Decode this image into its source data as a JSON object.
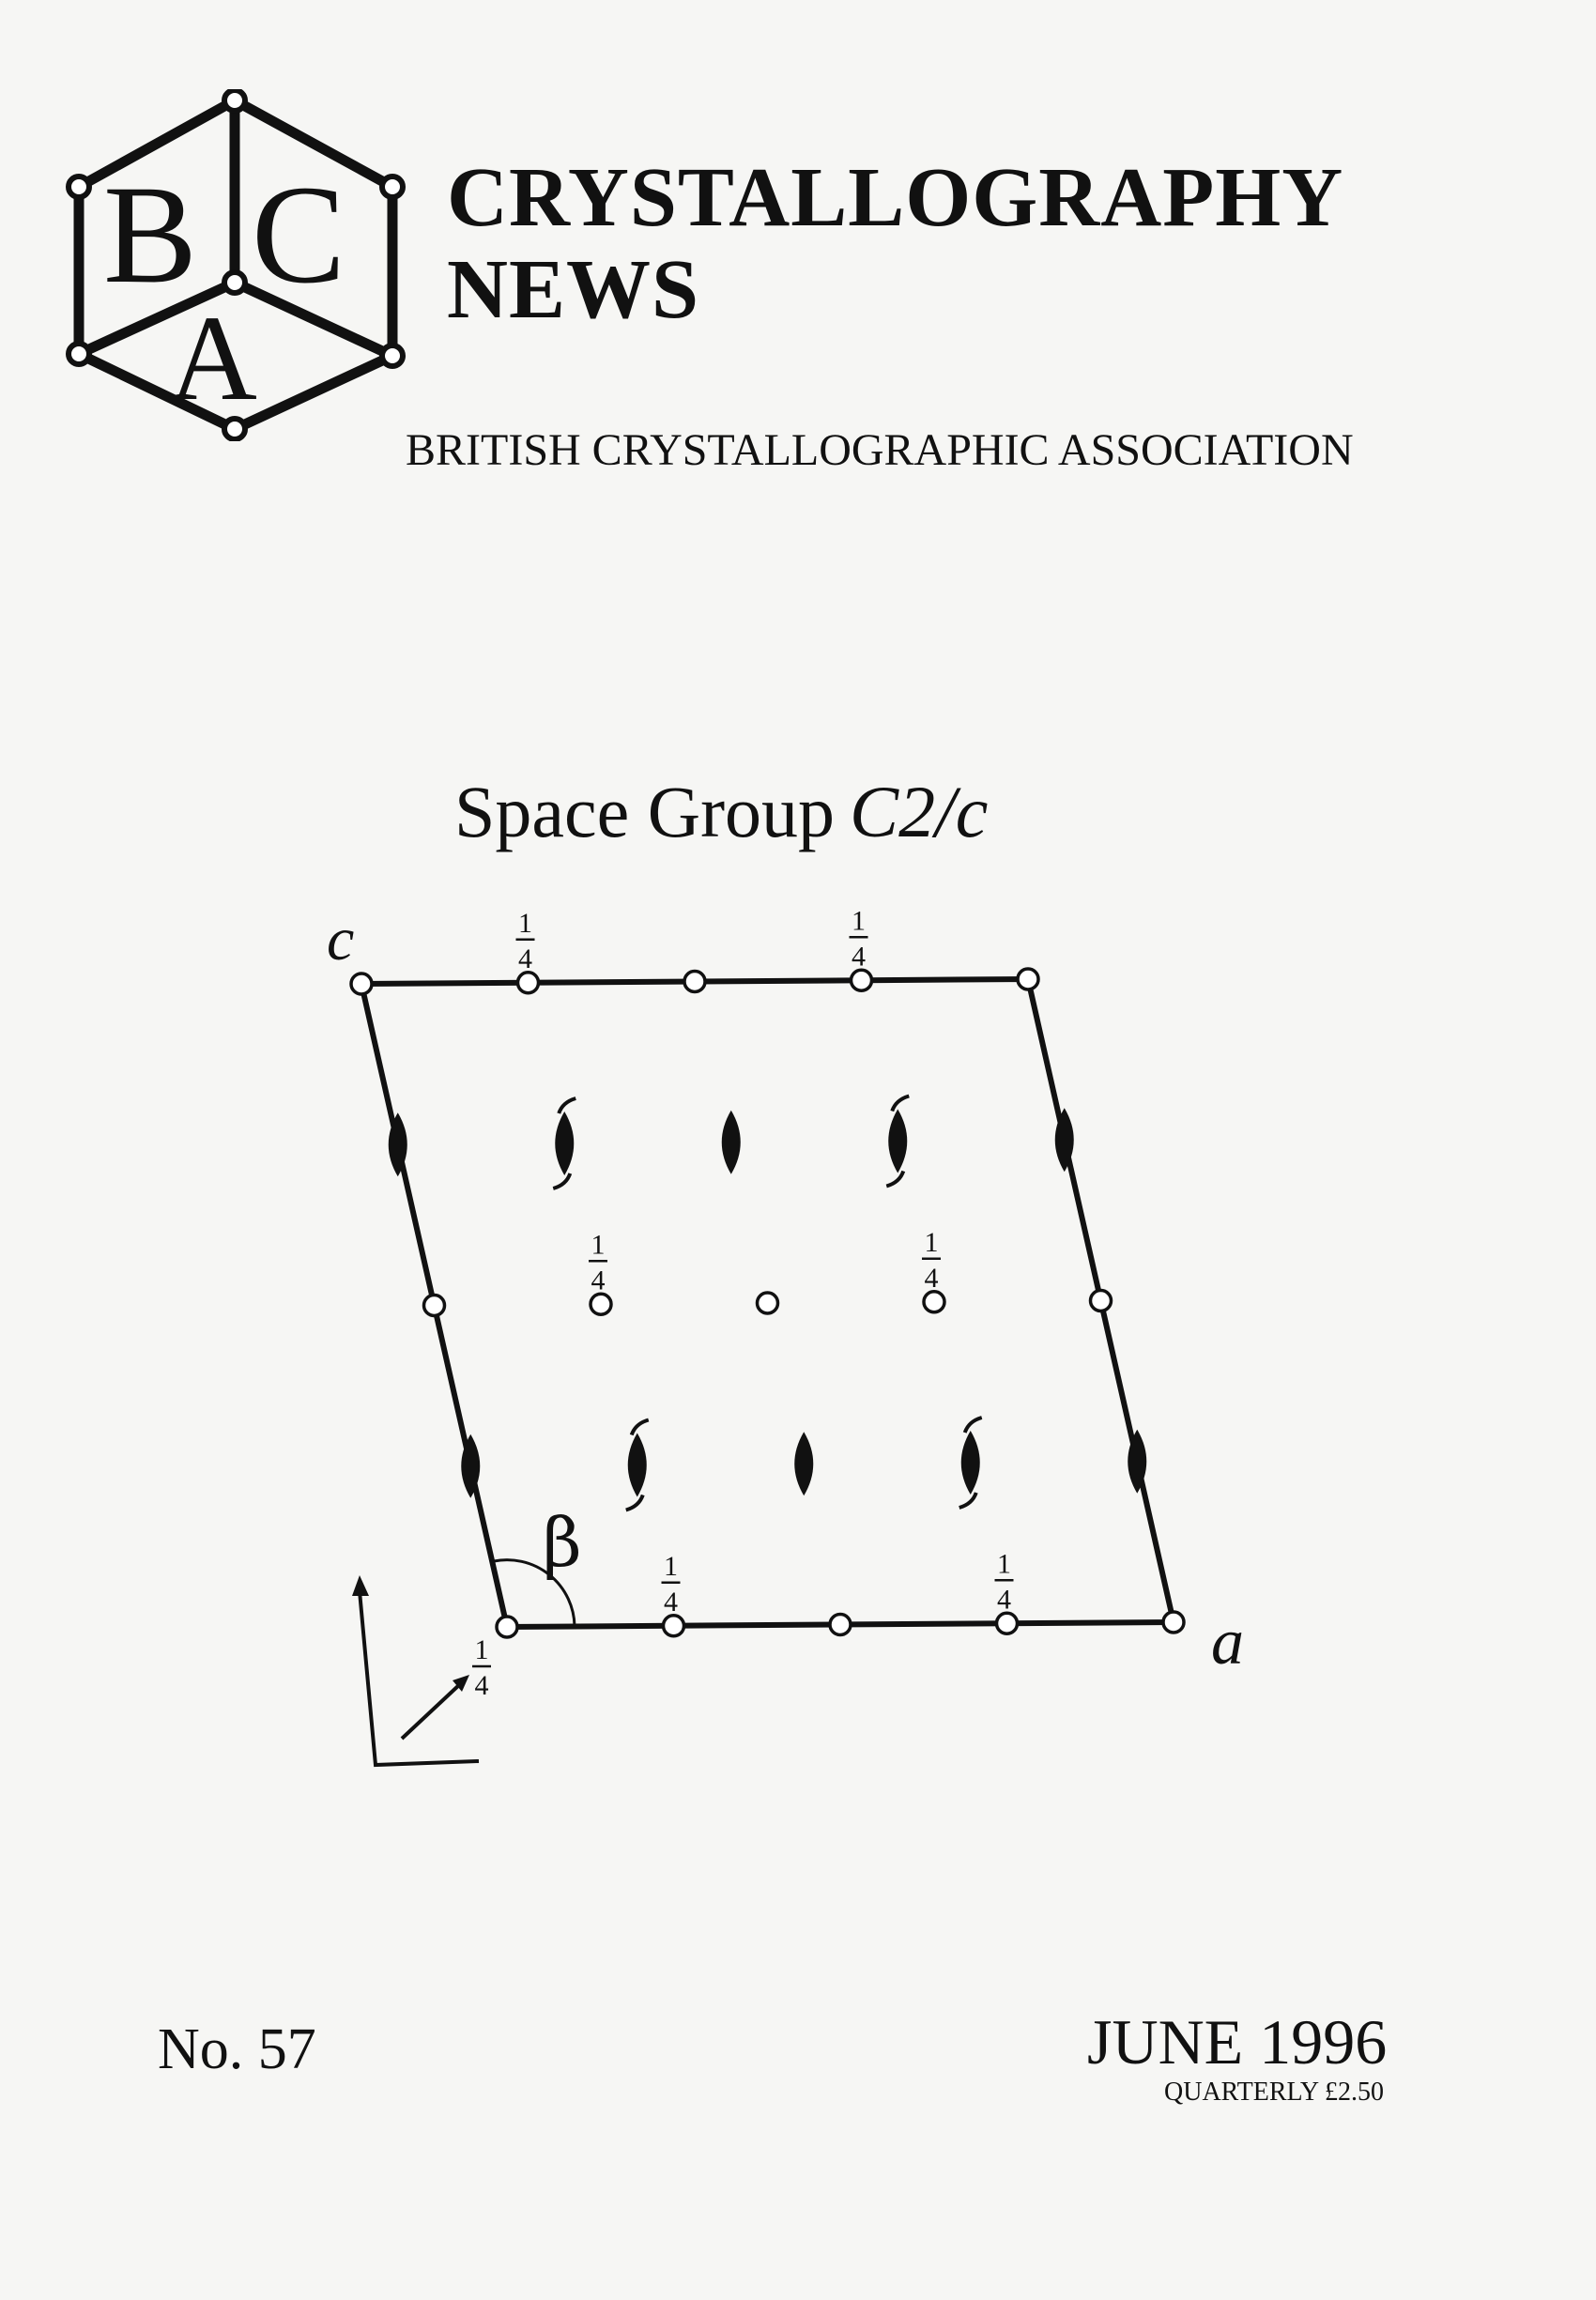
{
  "logo": {
    "letters": [
      "B",
      "C",
      "A"
    ],
    "icon": "bca-hexagon-logo"
  },
  "masthead": {
    "title_line1": "CRYSTALLOGRAPHY",
    "title_line2": "NEWS",
    "association": "BRITISH CRYSTALLOGRAPHIC ASSOCIATION"
  },
  "diagram": {
    "heading_text": "Space Group",
    "space_group": "C2/c",
    "axis_c": "c",
    "axis_a": "a",
    "angle": "β",
    "quarter": "1/4",
    "quarter_num": "1",
    "quarter_den": "4"
  },
  "issue": {
    "number": "No. 57",
    "date": "JUNE 1996",
    "price": "QUARTERLY £2.50"
  },
  "colors": {
    "ink": "#111111",
    "paper": "#f6f6f4"
  }
}
